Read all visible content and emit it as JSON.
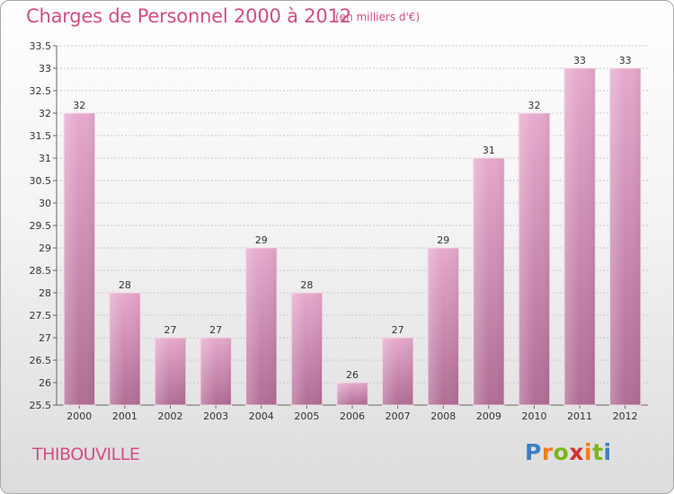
{
  "header": {
    "title": "Charges de Personnel 2000 à 2012",
    "subtitle": "(en milliers d'€)"
  },
  "footer": {
    "commune": "THIBOUVILLE",
    "logo_text": "Proxiti",
    "logo_colors": [
      "#3b7fc4",
      "#f07d1a",
      "#7bb51c",
      "#d62f2f"
    ]
  },
  "chart_data": {
    "type": "bar",
    "categories": [
      "2000",
      "2001",
      "2002",
      "2003",
      "2004",
      "2005",
      "2006",
      "2007",
      "2008",
      "2009",
      "2010",
      "2011",
      "2012"
    ],
    "values": [
      32,
      28,
      27,
      27,
      29,
      28,
      26,
      27,
      29,
      31,
      32,
      33,
      33
    ],
    "value_labels": [
      "32",
      "28",
      "27",
      "27",
      "29",
      "28",
      "26",
      "27",
      "29",
      "31",
      "32",
      "33",
      "33"
    ],
    "title": "Charges de Personnel 2000 à 2012",
    "subtitle": "(en milliers d'€)",
    "ylim": [
      25.5,
      33.5
    ],
    "yticks": [
      25.5,
      26,
      26.5,
      27,
      27.5,
      28,
      28.5,
      29,
      29.5,
      30,
      30.5,
      31,
      31.5,
      32,
      32.5,
      33,
      33.5
    ],
    "ytick_labels": [
      "25.5",
      "26",
      "26.5",
      "27",
      "27.5",
      "28",
      "28.5",
      "29",
      "29.5",
      "30",
      "30.5",
      "31",
      "31.5",
      "32",
      "32.5",
      "33",
      "33.5"
    ],
    "grid": true,
    "bar_color": "#d48ab5"
  }
}
